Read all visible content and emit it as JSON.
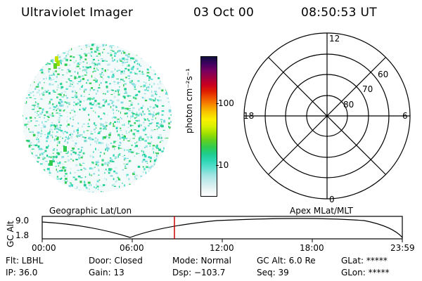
{
  "header": {
    "instrument": "Ultraviolet Imager",
    "date": "03 Oct 00",
    "time": "08:50:53 UT"
  },
  "colorbar": {
    "label": "photon cm⁻²s⁻¹",
    "ticks": [
      "100",
      "10"
    ],
    "colors": [
      "#ffffff",
      "#e8f4f4",
      "#c8ecec",
      "#a0e4e4",
      "#60e0d0",
      "#30d8b8",
      "#20cc90",
      "#30cc50",
      "#60d020",
      "#a0e000",
      "#d8f000",
      "#f8f000",
      "#f8c800",
      "#f89000",
      "#f05800",
      "#e02000",
      "#c80020",
      "#a00040",
      "#780060",
      "#400060",
      "#101040"
    ]
  },
  "polar": {
    "top_label": "12",
    "bottom_label": "0",
    "left_label": "18",
    "right_label": "6",
    "ring_labels": [
      "60",
      "70",
      "80"
    ]
  },
  "timeline": {
    "left_title": "Geographic Lat/Lon",
    "right_title": "Apex MLat/MLT",
    "axis_label": "GC Alt",
    "y_ticks": [
      "9.0",
      "1.8"
    ],
    "x_ticks": [
      "00:00",
      "06:00",
      "12:00",
      "18:00",
      "23:59"
    ],
    "marker_color": "#cc0000"
  },
  "status": {
    "flt": "Flt: LBHL",
    "door": "Door: Closed",
    "mode": "Mode: Normal",
    "gc_alt": "GC Alt: 6.0 Re",
    "glat": "GLat: *****",
    "ip": "IP: 36.0",
    "gain": "Gain: 13",
    "dsp": "Dsp: −103.7",
    "seq": "Seq: 39",
    "glon": "GLon: *****"
  }
}
